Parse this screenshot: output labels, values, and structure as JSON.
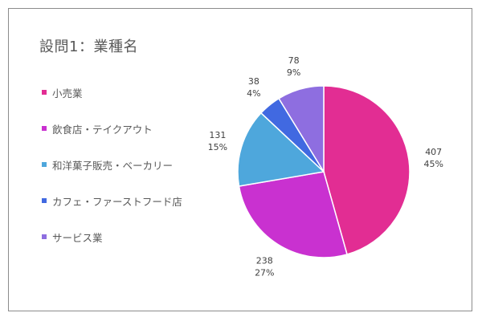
{
  "chart_data": {
    "type": "pie",
    "title": "設問1：業種名",
    "legend_position": "left",
    "slices": [
      {
        "label": "小売業",
        "value": 407,
        "percent": "45%",
        "color": "#e22d93"
      },
      {
        "label": "飲食店・テイクアウト",
        "value": 238,
        "percent": "27%",
        "color": "#c931d0"
      },
      {
        "label": "和洋菓子販売・ベーカリー",
        "value": 131,
        "percent": "15%",
        "color": "#4ea7dc"
      },
      {
        "label": "カフェ・ファーストフード店",
        "value": 38,
        "percent": "4%",
        "color": "#4169e1"
      },
      {
        "label": "サービス業",
        "value": 78,
        "percent": "9%",
        "color": "#8e6ee0"
      }
    ]
  }
}
